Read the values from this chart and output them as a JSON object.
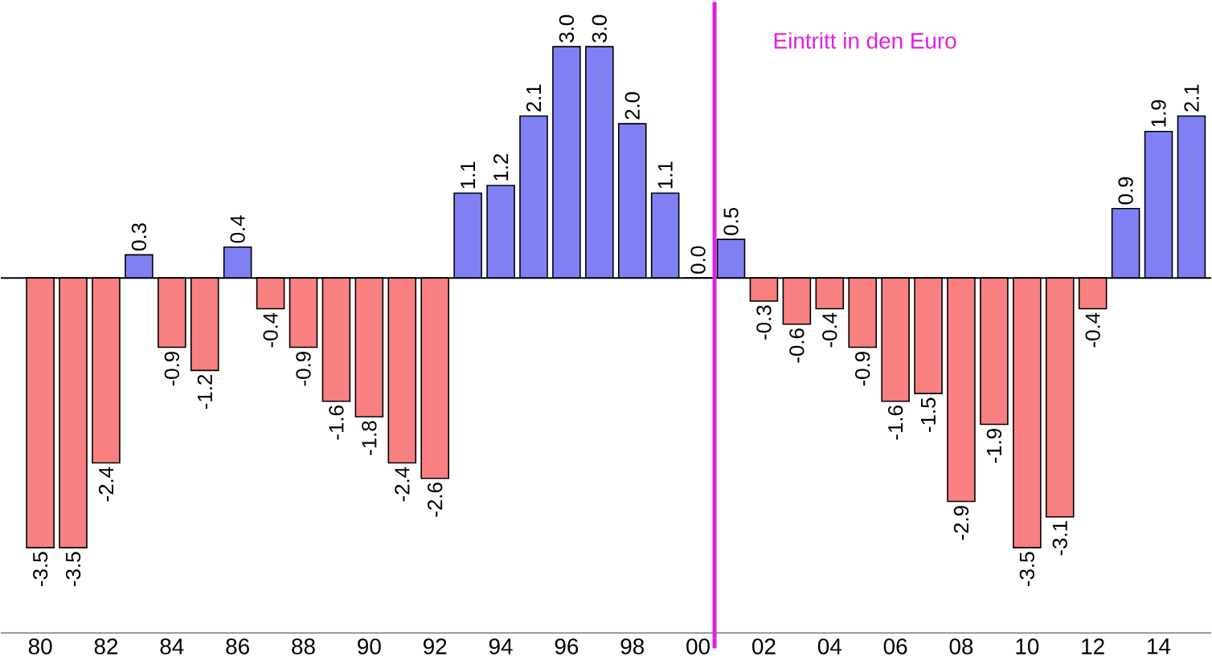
{
  "chart_data": {
    "type": "bar",
    "x": [
      1980,
      1981,
      1982,
      1983,
      1984,
      1985,
      1986,
      1987,
      1988,
      1989,
      1990,
      1991,
      1992,
      1993,
      1994,
      1995,
      1996,
      1997,
      1998,
      1999,
      2000,
      2001,
      2002,
      2003,
      2004,
      2005,
      2006,
      2007,
      2008,
      2009,
      2010,
      2011,
      2012,
      2013,
      2014,
      2015
    ],
    "values": [
      -3.5,
      -3.5,
      -2.4,
      0.3,
      -0.9,
      -1.2,
      0.4,
      -0.4,
      -0.9,
      -1.6,
      -1.8,
      -2.4,
      -2.6,
      1.1,
      1.2,
      2.1,
      3.0,
      3.0,
      2.0,
      1.1,
      0.0,
      0.5,
      -0.3,
      -0.6,
      -0.4,
      -0.9,
      -1.6,
      -1.5,
      -2.9,
      -1.9,
      -3.5,
      -3.1,
      -0.4,
      0.9,
      1.9,
      2.1
    ],
    "value_labels": [
      "-3.5",
      "-3.5",
      "-2.4",
      "0.3",
      "-0.9",
      "-1.2",
      "0.4",
      "-0.4",
      "-0.9",
      "-1.6",
      "-1.8",
      "-2.4",
      "-2.6",
      "1.1",
      "1.2",
      "2.1",
      "3.0",
      "3.0",
      "2.0",
      "1.1",
      "0.0",
      "0.5",
      "-0.3",
      "-0.6",
      "-0.4",
      "-0.9",
      "-1.6",
      "-1.5",
      "-2.9",
      "-1.9",
      "-3.5",
      "-3.1",
      "-0.4",
      "0.9",
      "1.9",
      "2.1"
    ],
    "colors": [
      "#f88080",
      "#f88080",
      "#f88080",
      "#8080f4",
      "#f88080",
      "#f88080",
      "#8080f4",
      "#f88080",
      "#f88080",
      "#f88080",
      "#f88080",
      "#f88080",
      "#f88080",
      "#8080f4",
      "#8080f4",
      "#8080f4",
      "#8080f4",
      "#8080f4",
      "#8080f4",
      "#8080f4",
      "#8080f4",
      "#8080f4",
      "#f88080",
      "#f88080",
      "#f88080",
      "#f88080",
      "#f88080",
      "#f88080",
      "#f88080",
      "#f88080",
      "#f88080",
      "#f88080",
      "#f88080",
      "#8080f4",
      "#8080f4",
      "#8080f4"
    ],
    "xlim": [
      1978.8,
      2015.6
    ],
    "xticks": [
      {
        "value": 1980,
        "label": "80"
      },
      {
        "value": 1982,
        "label": "82"
      },
      {
        "value": 1984,
        "label": "84"
      },
      {
        "value": 1986,
        "label": "86"
      },
      {
        "value": 1988,
        "label": "88"
      },
      {
        "value": 1990,
        "label": "90"
      },
      {
        "value": 1992,
        "label": "92"
      },
      {
        "value": 1994,
        "label": "94"
      },
      {
        "value": 1996,
        "label": "96"
      },
      {
        "value": 1998,
        "label": "98"
      },
      {
        "value": 2000,
        "label": "00"
      },
      {
        "value": 2002,
        "label": "02"
      },
      {
        "value": 2004,
        "label": "04"
      },
      {
        "value": 2006,
        "label": "06"
      },
      {
        "value": 2008,
        "label": "08"
      },
      {
        "value": 2010,
        "label": "10"
      },
      {
        "value": 2012,
        "label": "12"
      },
      {
        "value": 2014,
        "label": "14"
      }
    ],
    "tick_labels": "x",
    "ref_lines": [
      {
        "axis": "x",
        "value": 2000.5,
        "label": "Eintritt in den Euro",
        "color": "#e020e0"
      }
    ]
  }
}
